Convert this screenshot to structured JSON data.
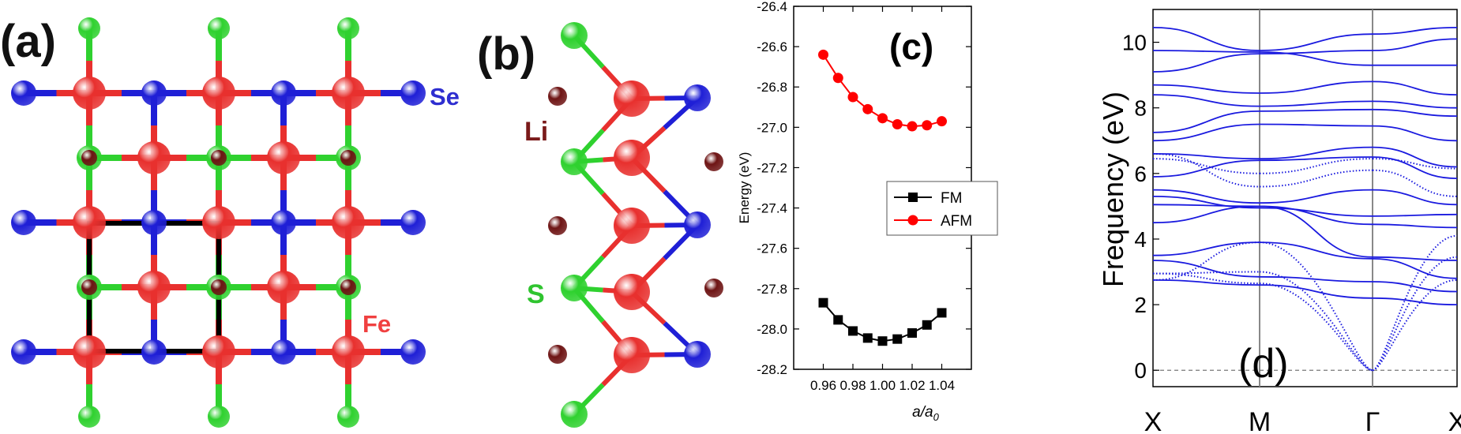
{
  "panels": {
    "a": {
      "label": "(a)",
      "atoms": {
        "se": "Se",
        "fe": "Fe"
      },
      "colors": {
        "fe": "#e8302e",
        "se": "#1f1fd6",
        "s": "#2fd12f",
        "li": "#6e1414",
        "cell": "#000000"
      }
    },
    "b": {
      "label": "(b)",
      "atoms": {
        "li": "Li",
        "s": "S"
      }
    }
  },
  "chart_data": [
    {
      "panel_label": "(c)",
      "type": "line",
      "title": "",
      "xlabel": "a/a",
      "xlabel_sub": "0",
      "ylabel": "Energy (eV)",
      "xlim": [
        0.94,
        1.06
      ],
      "ylim": [
        -28.2,
        -26.4
      ],
      "xticks": [
        0.96,
        0.98,
        1.0,
        1.02,
        1.04
      ],
      "xtick_labels": [
        "0.96",
        "0.98",
        "1.00",
        "1.02",
        "1.04"
      ],
      "yticks": [
        -26.4,
        -26.6,
        -26.8,
        -27.0,
        -27.2,
        -27.4,
        -27.6,
        -27.8,
        -28.0,
        -28.2
      ],
      "ytick_labels": [
        "-26.4",
        "-26.6",
        "-26.8",
        "-27.0",
        "-27.2",
        "-27.4",
        "-27.6",
        "-27.8",
        "-28.0",
        "-28.2"
      ],
      "x": [
        0.96,
        0.97,
        0.98,
        0.99,
        1.0,
        1.01,
        1.02,
        1.03,
        1.04
      ],
      "series": [
        {
          "name": "FM",
          "color": "#000000",
          "marker": "square",
          "values": [
            -27.87,
            -27.955,
            -28.01,
            -28.045,
            -28.06,
            -28.05,
            -28.02,
            -27.98,
            -27.92
          ]
        },
        {
          "name": "AFM",
          "color": "#ff0000",
          "marker": "circle",
          "values": [
            -26.64,
            -26.755,
            -26.85,
            -26.91,
            -26.955,
            -26.985,
            -26.995,
            -26.99,
            -26.97
          ]
        }
      ],
      "legend": "center-right"
    },
    {
      "panel_label": "(d)",
      "type": "line",
      "title": "",
      "ylabel": "Frequency (eV)",
      "ylim": [
        -0.5,
        11
      ],
      "yticks": [
        0,
        2,
        4,
        6,
        8,
        10
      ],
      "ytick_labels": [
        "0",
        "2",
        "4",
        "6",
        "8",
        "10"
      ],
      "kpoints": [
        "X",
        "M",
        "Γ",
        "X"
      ],
      "segments": [
        "X-M",
        "M-Γ",
        "Γ-X"
      ],
      "color": "#1a1adf",
      "bands_solid": [
        [
          10.45,
          9.75,
          10.25,
          10.45
        ],
        [
          9.75,
          9.7,
          9.3,
          9.3
        ],
        [
          9.1,
          9.65,
          9.75,
          10.1
        ],
        [
          8.7,
          8.45,
          8.8,
          8.4
        ],
        [
          8.4,
          8.05,
          8.2,
          8.0
        ],
        [
          7.25,
          7.9,
          7.95,
          7.75
        ],
        [
          7.0,
          7.5,
          7.45,
          7.0
        ],
        [
          6.6,
          6.45,
          6.8,
          6.2
        ],
        [
          5.9,
          6.4,
          6.5,
          5.85
        ],
        [
          5.5,
          5.1,
          5.5,
          5.05
        ],
        [
          5.3,
          4.95,
          4.7,
          4.75
        ],
        [
          5.05,
          5.0,
          4.45,
          4.35
        ],
        [
          4.5,
          5.0,
          3.45,
          3.35
        ],
        [
          3.5,
          3.9,
          3.4,
          2.8
        ],
        [
          3.35,
          2.85,
          2.7,
          2.4
        ],
        [
          2.75,
          2.6,
          2.2,
          2.0
        ]
      ],
      "bands_dotted": [
        [
          2.95,
          2.65,
          0,
          2.75
        ],
        [
          2.95,
          3.0,
          0,
          3.45
        ],
        [
          2.75,
          3.9,
          0,
          4.1
        ],
        [
          6.45,
          6.0,
          6.45,
          6.15
        ],
        [
          6.6,
          5.6,
          6.1,
          5.3
        ]
      ]
    }
  ]
}
